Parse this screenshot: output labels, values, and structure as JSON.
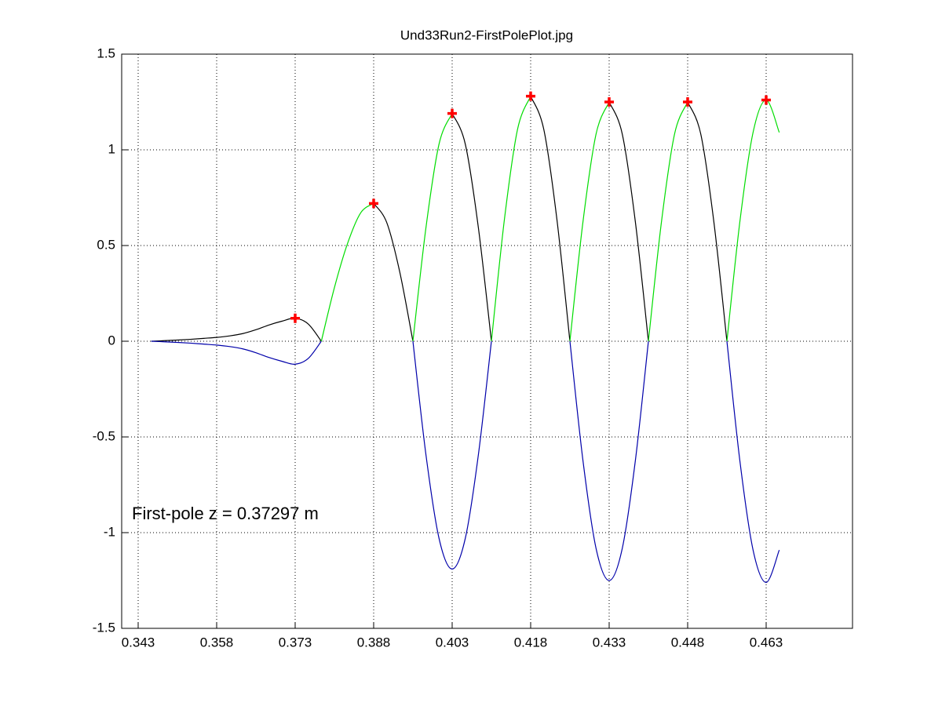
{
  "chart_data": {
    "type": "line",
    "title": "Und33Run2-FirstPolePlot.jpg",
    "annotation": "First-pole z = 0.37297 m",
    "x": [
      0.3455,
      0.348,
      0.3505,
      0.353,
      0.3555,
      0.358,
      0.3605,
      0.363,
      0.3655,
      0.368,
      0.3705,
      0.373,
      0.3755,
      0.378,
      0.3805,
      0.383,
      0.3855,
      0.388,
      0.3905,
      0.393,
      0.3955,
      0.398,
      0.4005,
      0.403,
      0.4055,
      0.408,
      0.4105,
      0.413,
      0.4155,
      0.418,
      0.4205,
      0.423,
      0.4255,
      0.428,
      0.4305,
      0.433,
      0.4355,
      0.438,
      0.4405,
      0.443,
      0.4455,
      0.448,
      0.4505,
      0.453,
      0.4555,
      0.458,
      0.4605,
      0.463,
      0.4655
    ],
    "series": [
      {
        "color": "#000000",
        "mode": "line",
        "values": [
          0,
          0.003,
          0.006,
          0.01,
          0.015,
          0.02,
          0.028,
          0.04,
          0.06,
          0.085,
          0.105,
          0.12,
          0.09,
          0,
          null,
          null,
          null,
          0.72,
          0.62,
          0.36,
          0,
          null,
          null,
          1.19,
          1.031,
          0.595,
          0,
          null,
          null,
          1.28,
          1.108,
          0.64,
          0,
          null,
          null,
          1.25,
          1.083,
          0.625,
          0,
          null,
          null,
          1.25,
          1.083,
          0.625,
          0,
          null,
          null,
          null,
          null
        ]
      },
      {
        "color": "#00dd00",
        "mode": "line",
        "values": [
          null,
          null,
          null,
          null,
          null,
          null,
          null,
          null,
          null,
          null,
          null,
          null,
          null,
          0,
          0.28,
          0.51,
          0.67,
          0.72,
          null,
          null,
          0,
          0.595,
          1.031,
          1.19,
          null,
          null,
          0,
          0.64,
          1.108,
          1.28,
          null,
          null,
          0,
          0.625,
          1.083,
          1.25,
          null,
          null,
          0,
          0.625,
          1.083,
          1.25,
          null,
          null,
          0,
          0.63,
          1.091,
          1.26,
          1.091
        ]
      },
      {
        "color": "#0000aa",
        "mode": "line",
        "values": [
          0,
          -0.003,
          -0.006,
          -0.01,
          -0.015,
          -0.02,
          -0.028,
          -0.04,
          -0.06,
          -0.085,
          -0.105,
          -0.12,
          -0.09,
          0,
          null,
          null,
          null,
          null,
          null,
          null,
          0,
          -0.595,
          -1.031,
          -1.19,
          -1.031,
          -0.595,
          0,
          null,
          null,
          null,
          null,
          null,
          0,
          -0.625,
          -1.083,
          -1.25,
          -1.083,
          -0.625,
          0,
          null,
          null,
          null,
          null,
          null,
          0,
          -0.63,
          -1.091,
          -1.26,
          -1.091
        ]
      },
      {
        "color": "#ff0000",
        "mode": "plus",
        "values": [
          null,
          null,
          null,
          null,
          null,
          null,
          null,
          null,
          null,
          null,
          null,
          0.12,
          null,
          null,
          null,
          null,
          null,
          0.72,
          null,
          null,
          null,
          null,
          null,
          1.19,
          null,
          null,
          null,
          null,
          null,
          1.28,
          null,
          null,
          null,
          null,
          null,
          1.25,
          null,
          null,
          null,
          null,
          null,
          1.25,
          null,
          null,
          null,
          null,
          null,
          1.26,
          null
        ]
      }
    ],
    "xlim": [
      0.33985,
      0.4795
    ],
    "ylim": [
      -1.5,
      1.5
    ],
    "xticks": [
      0.343,
      0.358,
      0.373,
      0.388,
      0.403,
      0.418,
      0.433,
      0.448,
      0.463
    ],
    "yticks": [
      -1.5,
      -1,
      -0.5,
      0,
      0.5,
      1,
      1.5
    ],
    "grid": true
  }
}
